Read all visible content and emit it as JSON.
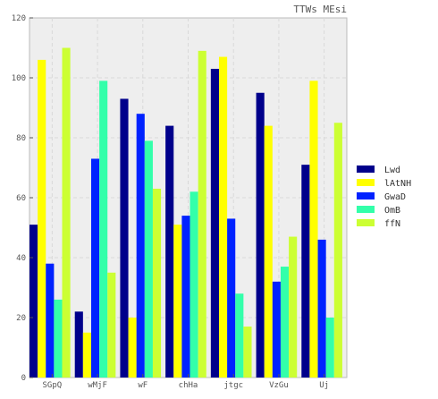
{
  "chart_data": {
    "type": "bar",
    "title": "TTWs MEsi",
    "xlabel": "",
    "ylabel": "",
    "ylim": [
      0,
      120
    ],
    "yticks": [
      0,
      20,
      40,
      60,
      80,
      100,
      120
    ],
    "grid": true,
    "legend_position": "right",
    "categories": [
      "SGpQ",
      "wMjF",
      "wF",
      "chHa",
      "jtgc",
      "VzGu",
      "Uj"
    ],
    "series": [
      {
        "name": "Lwd",
        "color": "#00008b",
        "values": [
          51,
          22,
          93,
          84,
          103,
          95,
          71
        ]
      },
      {
        "name": "lAtNH",
        "color": "#ffff00",
        "values": [
          106,
          15,
          20,
          51,
          107,
          84,
          99
        ]
      },
      {
        "name": "GwaD",
        "color": "#0022ff",
        "values": [
          38,
          73,
          88,
          54,
          53,
          32,
          46
        ]
      },
      {
        "name": "OmB",
        "color": "#33ffaa",
        "values": [
          26,
          99,
          79,
          62,
          28,
          37,
          20
        ]
      },
      {
        "name": "ffN",
        "color": "#ccff33",
        "values": [
          110,
          35,
          63,
          109,
          17,
          47,
          85
        ]
      }
    ]
  }
}
